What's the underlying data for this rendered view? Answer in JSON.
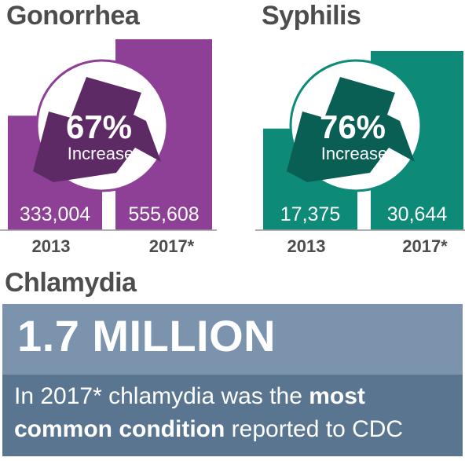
{
  "chart_data": [
    {
      "type": "bar",
      "title": "Gonorrhea",
      "categories": [
        "2013",
        "2017*"
      ],
      "values": [
        333004,
        555608
      ],
      "value_labels": [
        "333,004",
        "555,608"
      ],
      "annotation": {
        "percent": "67%",
        "text": "Increase"
      },
      "color": "#8e3f96",
      "arrow_color": "#5e2a66"
    },
    {
      "type": "bar",
      "title": "Syphilis",
      "categories": [
        "2013",
        "2017*"
      ],
      "values": [
        17375,
        30644
      ],
      "value_labels": [
        "17,375",
        "30,644"
      ],
      "annotation": {
        "percent": "76%",
        "text": "Increase"
      },
      "color": "#0d8a78",
      "arrow_color": "#0a5f54"
    }
  ],
  "chlamydia": {
    "title": "Chlamydia",
    "big_number": "1.7 MILLION",
    "caption_before": "In 2017* chlamydia was the ",
    "caption_bold": "most common condition",
    "caption_after": " reported to CDC"
  }
}
